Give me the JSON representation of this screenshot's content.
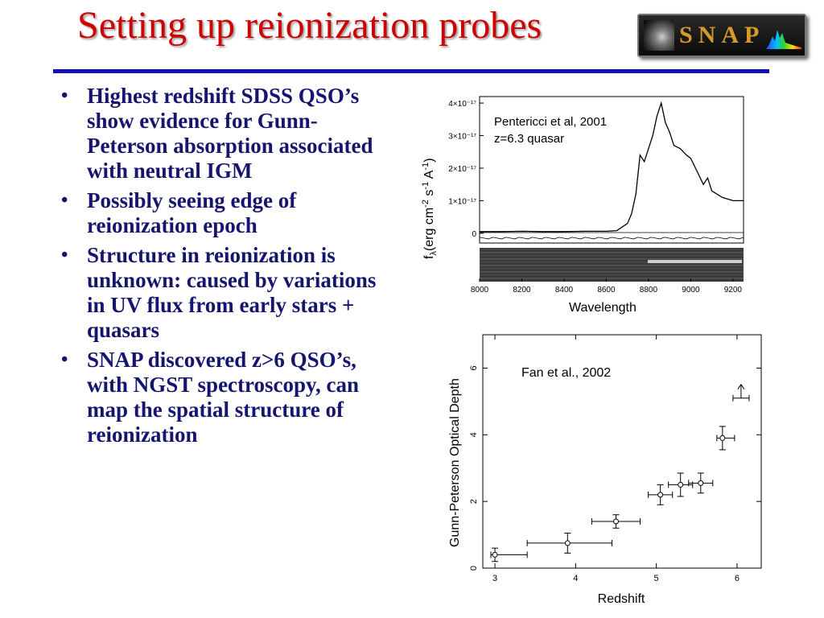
{
  "slide": {
    "title": "Setting up reionization probes",
    "logo_text": "SNAP"
  },
  "bullets": [
    "Highest redshift SDSS QSO’s show evidence for Gunn-Peterson absorption associated with neutral IGM",
    "Possibly seeing edge of reionization epoch",
    "Structure in reionization is unknown: caused by variations in UV flux from early stars + quasars",
    "SNAP discovered z>6 QSO’s, with NGST spectroscopy, can map the spatial structure of reionization"
  ],
  "bullet_marker": "•",
  "spectrum": {
    "annotation_line1": "Pentericci et al, 2001",
    "annotation_line2": "z=6.3 quasar",
    "xlabel": "Wavelength",
    "ylabel_main": "f",
    "ylabel_sub": "λ",
    "ylabel_rest": "(erg cm",
    "ylabel_sup1": "-2",
    "ylabel_mid": " s",
    "ylabel_sup2": "-1",
    "ylabel_end1": " A",
    "ylabel_sup3": "-1",
    "ylabel_end2": ")",
    "ytick_labels": [
      "0",
      "1×10⁻¹⁷",
      "2×10⁻¹⁷",
      "3×10⁻¹⁷",
      "4×10⁻¹⁷"
    ],
    "xtick_labels": [
      "8000",
      "8200",
      "8400",
      "8600",
      "8800",
      "9000",
      "9200"
    ]
  },
  "chart_data": [
    {
      "type": "line",
      "title": "",
      "annotation": "Pentericci et al, 2001 z=6.3 quasar",
      "xlabel": "Wavelength",
      "ylabel": "fλ(erg cm-2 s-1 A-1)",
      "xlim": [
        8000,
        9250
      ],
      "ylim": [
        -3e-18,
        4.2e-17
      ],
      "x": [
        8000,
        8100,
        8200,
        8300,
        8400,
        8500,
        8600,
        8650,
        8700,
        8720,
        8740,
        8760,
        8780,
        8800,
        8820,
        8840,
        8860,
        8880,
        8900,
        8920,
        8950,
        8980,
        9000,
        9030,
        9060,
        9080,
        9100,
        9150,
        9200,
        9250
      ],
      "y": [
        5e-19,
        5e-19,
        6e-19,
        5e-19,
        5e-19,
        6e-19,
        6e-19,
        8e-19,
        3e-18,
        6e-18,
        1.2e-17,
        2.4e-17,
        2.2e-17,
        2.6e-17,
        3e-17,
        3.6e-17,
        4e-17,
        3.4e-17,
        3.1e-17,
        2.7e-17,
        2.6e-17,
        2.4e-17,
        2.3e-17,
        1.9e-17,
        1.5e-17,
        1.7e-17,
        1.3e-17,
        1.1e-17,
        1e-17,
        1e-17
      ]
    },
    {
      "type": "scatter",
      "title": "",
      "annotation": "Fan et al., 2002",
      "xlabel": "Redshift",
      "ylabel": "Gunn-Peterson Optical Depth",
      "xlim": [
        2.85,
        6.3
      ],
      "ylim": [
        0,
        7
      ],
      "xticks": [
        3,
        4,
        5,
        6
      ],
      "yticks": [
        0,
        2,
        4,
        6
      ],
      "series": [
        {
          "points": [
            {
              "x": 3.0,
              "y": 0.4,
              "xerr": [
                0.05,
                0.4
              ],
              "yerr": 0.2
            },
            {
              "x": 3.9,
              "y": 0.75,
              "xerr": [
                0.5,
                0.55
              ],
              "yerr": 0.3
            },
            {
              "x": 4.5,
              "y": 1.4,
              "xerr": [
                0.3,
                0.3
              ],
              "yerr": 0.2
            },
            {
              "x": 5.05,
              "y": 2.2,
              "xerr": [
                0.15,
                0.15
              ],
              "yerr": 0.3
            },
            {
              "x": 5.3,
              "y": 2.5,
              "xerr": [
                0.15,
                0.15
              ],
              "yerr": 0.35
            },
            {
              "x": 5.55,
              "y": 2.55,
              "xerr": [
                0.15,
                0.15
              ],
              "yerr": 0.3
            },
            {
              "x": 5.82,
              "y": 3.9,
              "xerr": [
                0.07,
                0.15
              ],
              "yerr": 0.35
            }
          ]
        }
      ],
      "lower_limit": {
        "x": 6.05,
        "y": 5.1,
        "xerr": [
          0.1,
          0.1
        ]
      }
    }
  ],
  "optical_depth": {
    "annotation": "Fan et al., 2002",
    "xlabel": "Redshift",
    "ylabel": "Gunn-Peterson Optical Depth",
    "xtick_labels": [
      "3",
      "4",
      "5",
      "6"
    ],
    "ytick_labels": [
      "0",
      "2",
      "4",
      "6"
    ]
  },
  "colors": {
    "title": "#d10000",
    "bullet_text": "#151570",
    "rule": "#1010b8"
  }
}
